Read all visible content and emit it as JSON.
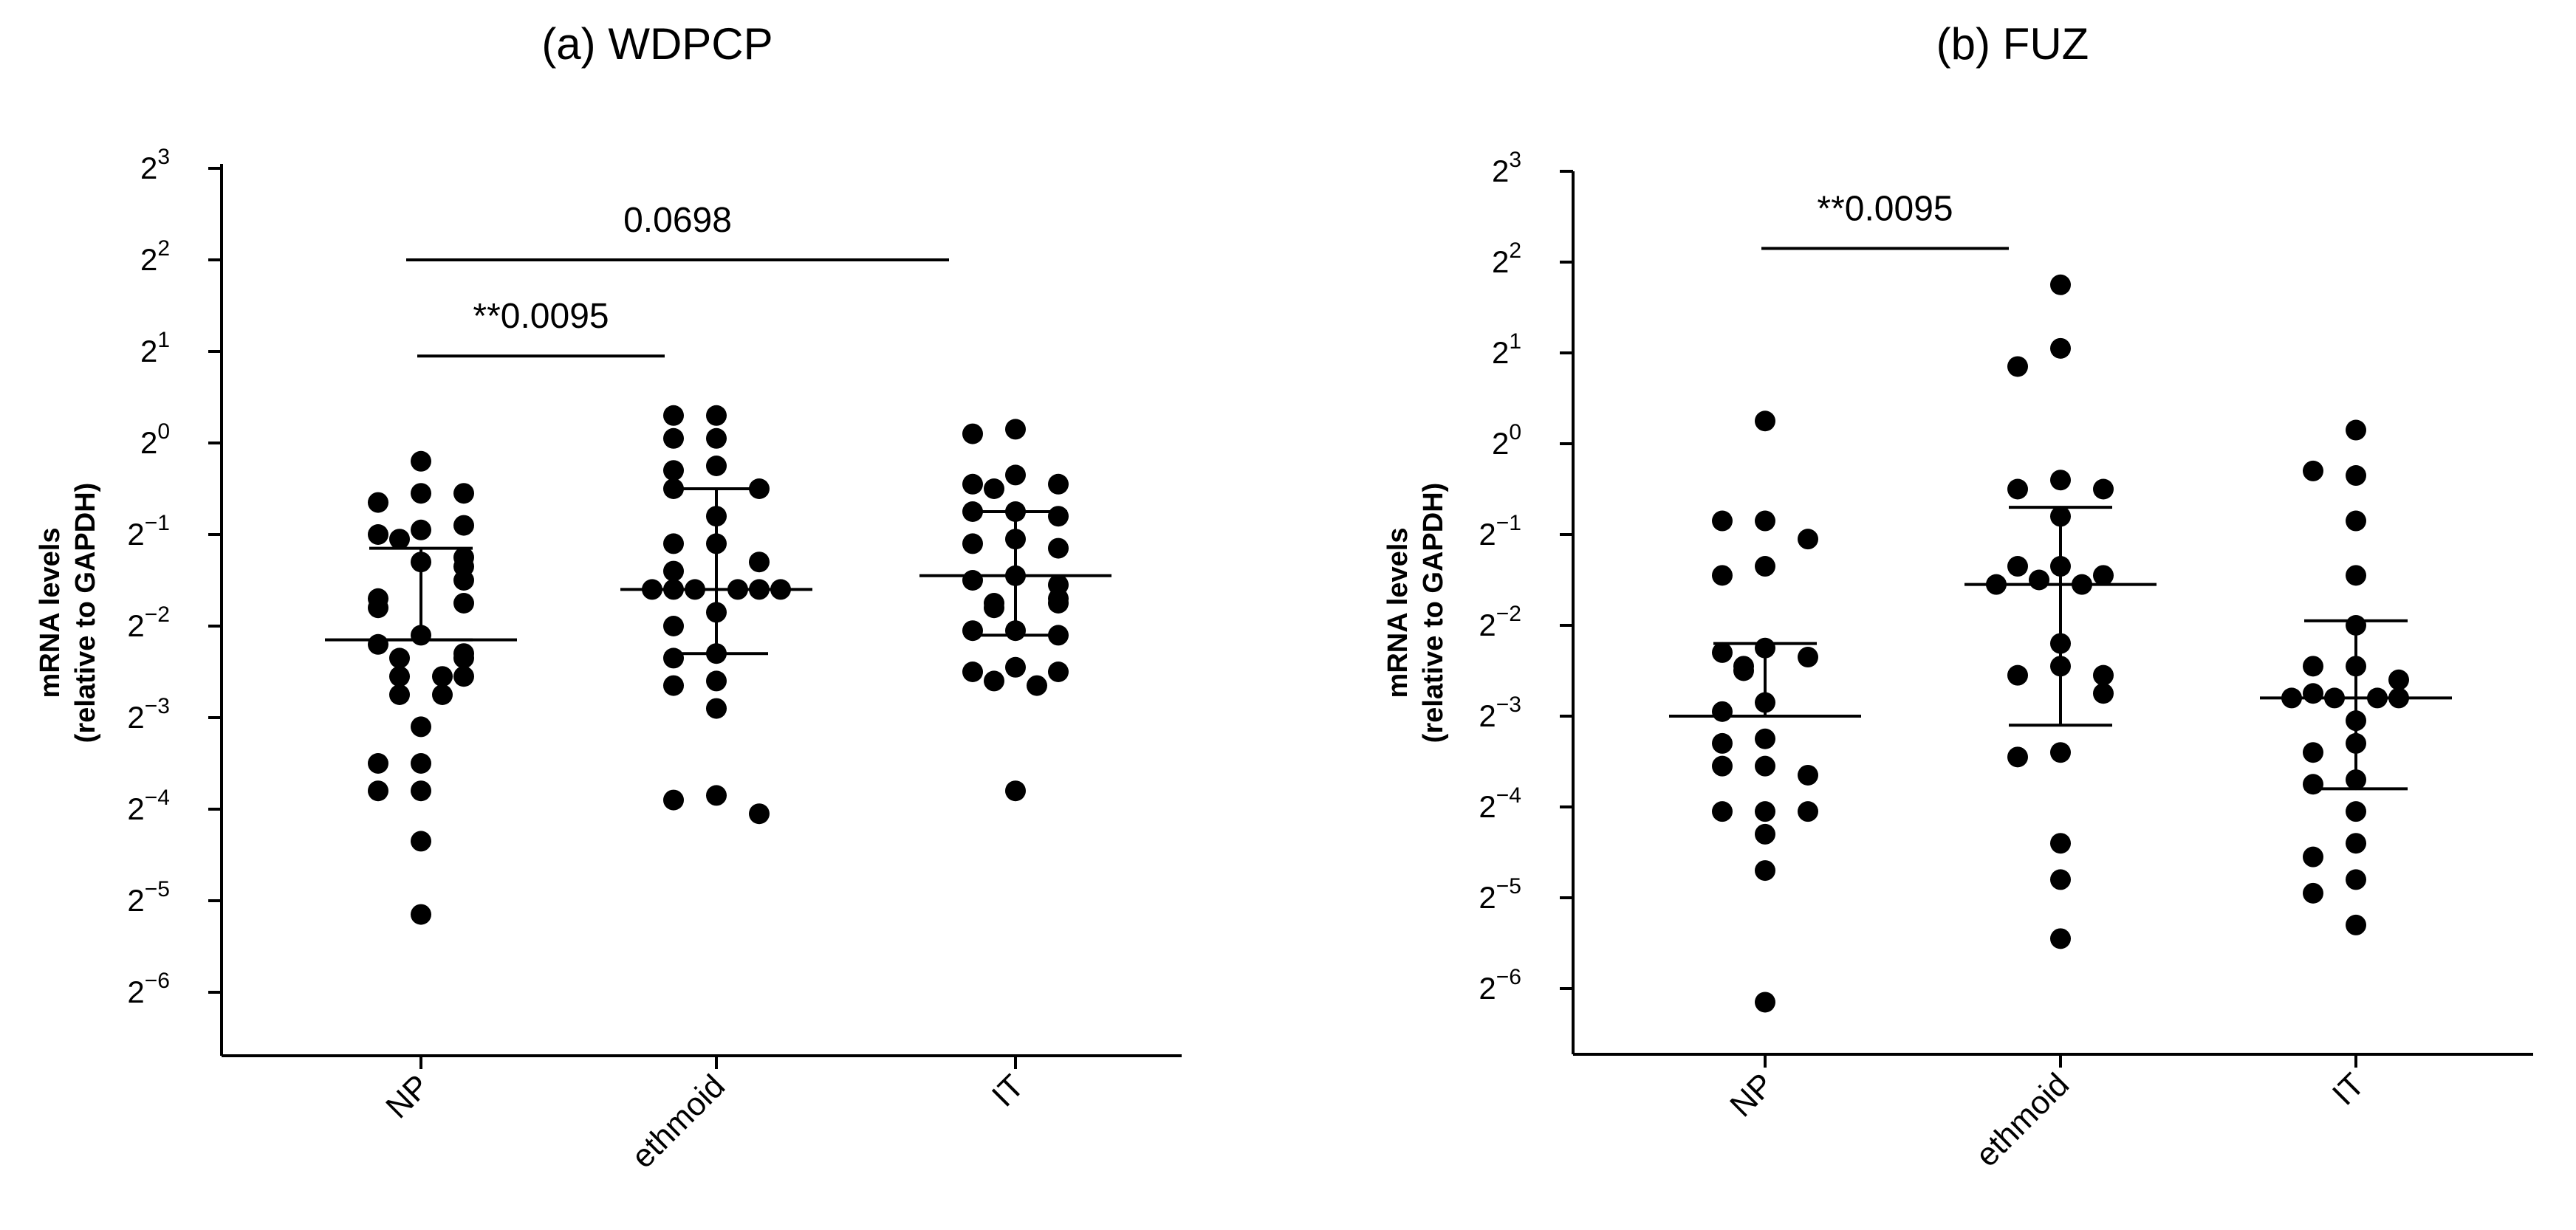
{
  "chart_data": [
    {
      "type": "scatter",
      "title": "(a) WDPCP",
      "ylabel_line1": "mRNA levels",
      "ylabel_line2": "(relative to GAPDH)",
      "y_scale": "log2",
      "y_tick_base": "2",
      "y_tick_exponents": [
        "3",
        "2",
        "1",
        "0",
        "−1",
        "−2",
        "−3",
        "−4",
        "−5",
        "−6"
      ],
      "ylim_exponent": [
        -6.5,
        3
      ],
      "categories": [
        "NP",
        "ethmoid",
        "IT"
      ],
      "series": [
        {
          "category": "NP",
          "log2_values": [
            -0.2,
            -0.55,
            -0.65,
            -0.55,
            -0.95,
            -1.0,
            -0.9,
            -1.05,
            -1.3,
            -1.25,
            -1.35,
            -1.5,
            -1.7,
            -1.8,
            -1.75,
            -2.1,
            -2.2,
            -2.3,
            -2.35,
            -2.35,
            -2.55,
            -2.55,
            -2.55,
            -2.75,
            -2.75,
            -3.1,
            -3.5,
            -3.5,
            -3.8,
            -3.8,
            -4.35,
            -5.15
          ],
          "mean": -2.15,
          "sd_upper": -1.15,
          "sd_lower": -2.15
        },
        {
          "category": "ethmoid",
          "log2_values": [
            0.3,
            0.3,
            0.05,
            0.05,
            -0.25,
            -0.3,
            -0.5,
            -0.5,
            -0.8,
            -1.1,
            -1.1,
            -1.3,
            -1.4,
            -1.6,
            -1.6,
            -1.6,
            -1.6,
            -1.6,
            -1.6,
            -1.85,
            -2.0,
            -2.3,
            -2.35,
            -2.6,
            -2.65,
            -2.9,
            -3.85,
            -3.9,
            -4.05
          ],
          "mean": -1.6,
          "sd_upper": -0.5,
          "sd_lower": -2.3
        },
        {
          "category": "IT",
          "log2_values": [
            0.15,
            0.1,
            -0.35,
            -0.45,
            -0.45,
            -0.5,
            -0.75,
            -0.75,
            -0.8,
            -1.05,
            -1.1,
            -1.15,
            -1.45,
            -1.5,
            -1.55,
            -1.7,
            -1.75,
            -1.75,
            -1.8,
            -2.05,
            -2.05,
            -2.1,
            -2.45,
            -2.5,
            -2.5,
            -2.6,
            -2.65,
            -3.8
          ],
          "mean": -1.45,
          "sd_upper": -0.75,
          "sd_lower": -2.1
        }
      ],
      "annotations": [
        {
          "text": "0.0698",
          "from": "NP",
          "to": "IT",
          "level_exponent": 2.0
        },
        {
          "text": "**0.0095",
          "from": "NP",
          "to": "ethmoid",
          "level_exponent": 0.95
        }
      ]
    },
    {
      "type": "scatter",
      "title": "(b) FUZ",
      "ylabel_line1": "mRNA levels",
      "ylabel_line2": "(relative to GAPDH)",
      "y_scale": "log2",
      "y_tick_base": "2",
      "y_tick_exponents": [
        "3",
        "2",
        "1",
        "0",
        "−1",
        "−2",
        "−3",
        "−4",
        "−5",
        "−6"
      ],
      "ylim_exponent": [
        -6.6,
        3
      ],
      "categories": [
        "NP",
        "ethmoid",
        "IT"
      ],
      "series": [
        {
          "category": "NP",
          "log2_values": [
            0.25,
            -0.85,
            -0.85,
            -1.05,
            -1.35,
            -1.45,
            -2.25,
            -2.3,
            -2.35,
            -2.45,
            -2.5,
            -2.85,
            -2.95,
            -3.25,
            -3.3,
            -3.55,
            -3.55,
            -3.65,
            -4.05,
            -4.05,
            -4.05,
            -4.3,
            -4.7,
            -6.15
          ],
          "mean": -3.0,
          "sd_upper": -2.2,
          "sd_lower": -3.0
        },
        {
          "category": "ethmoid",
          "log2_values": [
            1.75,
            1.05,
            0.85,
            -0.4,
            -0.5,
            -0.5,
            -0.8,
            -1.35,
            -1.35,
            -1.45,
            -1.5,
            -1.55,
            -1.55,
            -2.2,
            -2.45,
            -2.55,
            -2.55,
            -2.75,
            -3.4,
            -3.45,
            -4.4,
            -4.8,
            -5.45
          ],
          "mean": -1.55,
          "sd_upper": -0.7,
          "sd_lower": -3.1
        },
        {
          "category": "IT",
          "log2_values": [
            0.15,
            -0.35,
            -0.3,
            -0.85,
            -1.45,
            -2.0,
            -2.45,
            -2.45,
            -2.6,
            -2.75,
            -2.8,
            -2.8,
            -2.8,
            -2.8,
            -3.05,
            -3.3,
            -3.4,
            -3.7,
            -3.75,
            -4.05,
            -4.4,
            -4.55,
            -4.8,
            -4.95,
            -5.3
          ],
          "mean": -2.8,
          "sd_upper": -1.95,
          "sd_lower": -3.8
        }
      ],
      "annotations": [
        {
          "text": "**0.0095",
          "from": "NP",
          "to": "ethmoid",
          "level_exponent": 2.15
        }
      ]
    }
  ]
}
